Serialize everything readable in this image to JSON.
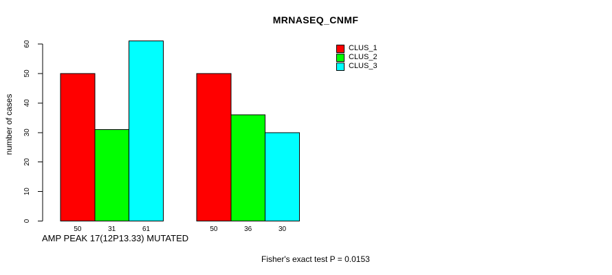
{
  "title": "MRNASEQ_CNMF",
  "y_axis": {
    "label": "number of cases",
    "ticks": [
      0,
      10,
      20,
      30,
      40,
      50,
      60
    ]
  },
  "x_annotation": "AMP PEAK 17(12P13.33) MUTATED",
  "footer_note": "Fisher's exact test P = 0.0153",
  "legend": {
    "position": "top-right",
    "items": [
      {
        "label": "CLUS_1",
        "color": "#ff0000"
      },
      {
        "label": "CLUS_2",
        "color": "#00ff00"
      },
      {
        "label": "CLUS_3",
        "color": "#00ffff"
      }
    ]
  },
  "chart_data": {
    "type": "bar",
    "grouped": true,
    "title": "MRNASEQ_CNMF",
    "ylabel": "number of cases",
    "xlabel": "AMP PEAK 17(12P13.33) MUTATED",
    "categories": [
      "",
      ""
    ],
    "series": [
      {
        "name": "CLUS_1",
        "color": "#ff0000",
        "values": [
          50,
          50
        ]
      },
      {
        "name": "CLUS_2",
        "color": "#00ff00",
        "values": [
          31,
          36
        ]
      },
      {
        "name": "CLUS_3",
        "color": "#00ffff",
        "values": [
          61,
          30
        ]
      }
    ],
    "ylim": [
      0,
      60
    ],
    "grid": false,
    "bar_value_labels_shown": true,
    "legend_position": "top-right",
    "annotations": [
      "Fisher's exact test P = 0.0153"
    ]
  }
}
